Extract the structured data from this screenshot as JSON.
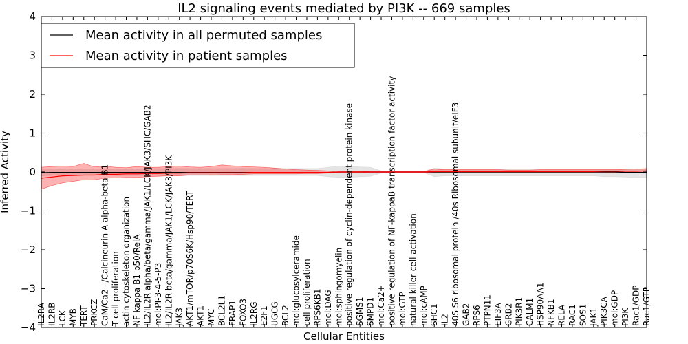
{
  "chart_data": {
    "type": "line",
    "title": "IL2 signaling events mediated by PI3K -- 669 samples",
    "xlabel": "Cellular Entities",
    "ylabel": "Inferred Activity",
    "ylim": [
      -4,
      4
    ],
    "yticks": [
      -4,
      -3,
      -2,
      -1,
      0,
      1,
      2,
      3,
      4
    ],
    "ytick_labels": [
      "−4",
      "−3",
      "−2",
      "−1",
      "0",
      "1",
      "2",
      "3",
      "4"
    ],
    "legend_position": "top-left",
    "grid": false,
    "categories": [
      "IL2RA",
      "IL2RB",
      "LCK",
      "MYB",
      "TERT",
      "PRKCZ",
      "CaM/Ca2+/Calcineurin A alpha-beta B1",
      "T cell proliferation",
      "actin cytoskeleton organization",
      "NF kappa B1 p50/RelA",
      "IL2/IL2R alpha/beta/gamma/JAK1/LCK/JAK3/SHC/GAB2",
      "mol:PI-3-4-5-P3",
      "IL2/IL2R beta/gamma/JAK1/LCK/JAK3/PI3K",
      "JAK3",
      "AKT1/mTOR/p70S6K/Hsp90/TERT",
      "AKT1",
      "MYC",
      "BCL2L1",
      "FRAP1",
      "FOXO3",
      "IL2RG",
      "E2F1",
      "UGCG",
      "BCL2",
      "mol:glucosylceramide",
      "cell proliferation",
      "RPS6KB1",
      "mol:DAG",
      "mol:sphingomyelin",
      "positive regulation of cyclin-dependent protein kinase",
      "SGMS1",
      "SMPD1",
      "mol:Ca2+",
      "positive regulation of NF-kappaB transcription factor activity",
      "mol:GTP",
      "natural killer cell activation",
      "mol:cAMP",
      "SHC1",
      "IL2",
      "40S S6 ribosomal protein /40s Ribosomal subunit/eIF3",
      "GAB2",
      "RPS6",
      "PTPN11",
      "EIF3A",
      "GRB2",
      "PIK3R1",
      "CALM1",
      "HSP90AA1",
      "NFKB1",
      "RELA",
      "RAC1",
      "SOS1",
      "JAK1",
      "PIK3CA",
      "mol:GDP",
      "PI3K",
      "Rac1/GDP",
      "Rac1/GTP"
    ],
    "series": [
      {
        "name": "Mean activity in all permuted samples",
        "color": "#000000",
        "values": [
          -0.02,
          -0.01,
          -0.01,
          -0.01,
          -0.01,
          -0.01,
          -0.01,
          -0.01,
          -0.01,
          -0.01,
          -0.01,
          -0.01,
          -0.01,
          -0.01,
          -0.01,
          -0.01,
          -0.01,
          -0.01,
          -0.01,
          -0.01,
          -0.01,
          -0.01,
          -0.01,
          -0.01,
          -0.01,
          -0.01,
          -0.01,
          -0.01,
          0.0,
          0.0,
          0.0,
          0.0,
          0.0,
          0.0,
          0.0,
          0.0,
          0.0,
          0.0,
          0.0,
          0.0,
          0.0,
          0.0,
          0.0,
          0.0,
          0.0,
          0.0,
          0.0,
          0.0,
          0.0,
          0.0,
          0.0,
          0.0,
          0.0,
          0.0,
          0.0,
          -0.01,
          -0.01,
          -0.01
        ],
        "band_low": [
          -0.1,
          -0.09,
          -0.08,
          -0.08,
          -0.08,
          -0.08,
          -0.08,
          -0.09,
          -0.09,
          -0.09,
          -0.09,
          -0.09,
          -0.09,
          -0.09,
          -0.09,
          -0.09,
          -0.09,
          -0.09,
          -0.09,
          -0.09,
          -0.09,
          -0.09,
          -0.09,
          -0.09,
          -0.09,
          -0.09,
          -0.09,
          -0.12,
          -0.14,
          -0.14,
          -0.12,
          -0.11,
          -0.03,
          -0.01,
          -0.01,
          -0.01,
          -0.01,
          -0.12,
          -0.1,
          -0.1,
          -0.1,
          -0.1,
          -0.1,
          -0.1,
          -0.1,
          -0.1,
          -0.1,
          -0.1,
          -0.1,
          -0.1,
          -0.1,
          -0.1,
          -0.1,
          -0.12,
          -0.12,
          -0.13,
          -0.14,
          -0.14
        ],
        "band_high": [
          0.06,
          0.06,
          0.06,
          0.06,
          0.06,
          0.06,
          0.06,
          0.07,
          0.07,
          0.08,
          0.09,
          0.09,
          0.09,
          0.09,
          0.09,
          0.09,
          0.09,
          0.09,
          0.09,
          0.09,
          0.09,
          0.09,
          0.09,
          0.09,
          0.09,
          0.09,
          0.09,
          0.12,
          0.15,
          0.15,
          0.13,
          0.12,
          0.03,
          0.01,
          0.01,
          0.01,
          0.01,
          0.1,
          0.08,
          0.08,
          0.08,
          0.08,
          0.08,
          0.08,
          0.08,
          0.08,
          0.08,
          0.08,
          0.08,
          0.08,
          0.08,
          0.08,
          0.08,
          0.08,
          0.08,
          0.08,
          0.08,
          0.08
        ]
      },
      {
        "name": "Mean activity in patient samples",
        "color": "#ff0000",
        "values": [
          -0.16,
          -0.13,
          -0.1,
          -0.09,
          -0.08,
          -0.08,
          -0.06,
          -0.06,
          -0.05,
          -0.05,
          -0.04,
          -0.04,
          -0.03,
          -0.03,
          -0.02,
          -0.02,
          -0.02,
          -0.02,
          -0.02,
          -0.02,
          -0.01,
          -0.01,
          -0.01,
          -0.01,
          -0.01,
          -0.01,
          -0.01,
          -0.01,
          0.0,
          0.0,
          0.0,
          0.0,
          0.0,
          0.0,
          0.0,
          0.0,
          0.0,
          0.01,
          0.01,
          0.01,
          0.01,
          0.01,
          0.01,
          0.01,
          0.01,
          0.01,
          0.01,
          0.01,
          0.01,
          0.01,
          0.01,
          0.01,
          0.01,
          0.02,
          0.02,
          0.02,
          0.02,
          0.03
        ],
        "band_low": [
          -0.44,
          -0.35,
          -0.28,
          -0.24,
          -0.2,
          -0.2,
          -0.16,
          -0.15,
          -0.14,
          -0.14,
          -0.12,
          -0.11,
          -0.1,
          -0.1,
          -0.08,
          -0.08,
          -0.08,
          -0.07,
          -0.07,
          -0.06,
          -0.05,
          -0.05,
          -0.05,
          -0.05,
          -0.05,
          -0.04,
          -0.04,
          -0.03,
          -0.02,
          -0.02,
          -0.02,
          -0.01,
          -0.01,
          -0.01,
          -0.01,
          -0.01,
          -0.01,
          -0.02,
          -0.02,
          -0.02,
          -0.02,
          -0.02,
          -0.02,
          -0.02,
          -0.02,
          -0.02,
          -0.02,
          -0.02,
          -0.02,
          -0.02,
          -0.02,
          -0.02,
          -0.02,
          -0.02,
          -0.02,
          -0.02,
          -0.02,
          -0.02
        ],
        "band_high": [
          0.12,
          0.14,
          0.15,
          0.14,
          0.22,
          0.13,
          0.15,
          0.12,
          0.11,
          0.14,
          0.12,
          0.12,
          0.14,
          0.15,
          0.13,
          0.12,
          0.14,
          0.18,
          0.16,
          0.14,
          0.13,
          0.12,
          0.1,
          0.08,
          0.06,
          0.05,
          0.04,
          0.03,
          0.03,
          0.02,
          0.02,
          0.01,
          0.01,
          0.01,
          0.01,
          0.01,
          0.01,
          0.08,
          0.06,
          0.06,
          0.06,
          0.06,
          0.06,
          0.06,
          0.05,
          0.05,
          0.05,
          0.06,
          0.06,
          0.06,
          0.06,
          0.06,
          0.06,
          0.06,
          0.06,
          0.07,
          0.08,
          0.09
        ]
      }
    ]
  }
}
